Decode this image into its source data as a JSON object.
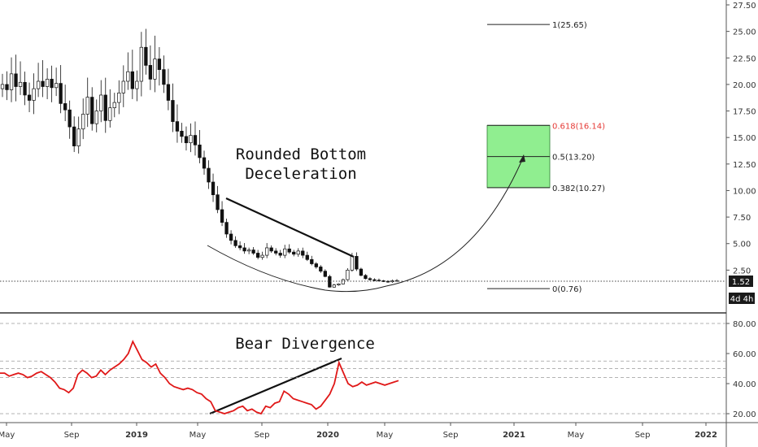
{
  "chart_data": [
    {
      "type": "candlestick",
      "title": "",
      "y_ticks": [
        "27.50",
        "25.00",
        "22.50",
        "20.00",
        "17.50",
        "15.00",
        "12.50",
        "10.00",
        "7.50",
        "5.00",
        "2.50"
      ],
      "ylim": [
        0,
        28.5
      ],
      "x_ticks": [
        "May",
        "Sep",
        "2019",
        "May",
        "Sep",
        "2020",
        "May",
        "Sep",
        "2021",
        "May",
        "Sep",
        "2022"
      ],
      "price_tag": {
        "value": 1.52,
        "label": "1.52",
        "countdown": "4d 4h"
      },
      "annotations": [
        "Rounded Bottom",
        "Deceleration"
      ],
      "fib_levels": [
        {
          "label": "1(25.65)",
          "value": 25.65,
          "color": "#222222"
        },
        {
          "label": "0.618(16.14)",
          "value": 16.14,
          "color": "#e53935"
        },
        {
          "label": "0.5(13.20)",
          "value": 13.2,
          "color": "#222222"
        },
        {
          "label": "0.382(10.27)",
          "value": 10.27,
          "color": "#222222"
        },
        {
          "label": "0(0.76)",
          "value": 0.76,
          "color": "#222222"
        }
      ],
      "target_zone": {
        "from": 10.27,
        "to": 16.14,
        "color": "#90ee90"
      },
      "closes": [
        20,
        19.5,
        21,
        19.8,
        20.2,
        19,
        18.5,
        19.6,
        20.3,
        19.8,
        20.5,
        19.7,
        20.1,
        18.2,
        17.6,
        16,
        14.2,
        15.8,
        17.2,
        18.8,
        16.3,
        17.5,
        19,
        16.6,
        17.8,
        18.3,
        19.2,
        20.3,
        21.2,
        19.6,
        20.3,
        23.5,
        21.8,
        20.5,
        22.4,
        21.4,
        20,
        18.5,
        16.5,
        15.6,
        15.1,
        14.5,
        15.2,
        14.3,
        13.1,
        12.1,
        10.8,
        9.6,
        8.2,
        7,
        5.9,
        5.3,
        4.8,
        4.6,
        4.3,
        4.4,
        4.1,
        3.7,
        3.9,
        4.6,
        4.3,
        4.1,
        3.9,
        4.5,
        4.2,
        4,
        4.3,
        3.9,
        3.5,
        3.1,
        2.8,
        2.4,
        1.9,
        0.9,
        1.1,
        1.2,
        1.6,
        2.5,
        3.8,
        2.6,
        2,
        1.7,
        1.6,
        1.55,
        1.5,
        1.45,
        1.4,
        1.5,
        1.52
      ]
    },
    {
      "type": "line",
      "title": "",
      "series": [
        {
          "values": [
            47,
            47,
            45,
            46,
            47,
            46,
            44,
            45,
            47,
            48,
            46,
            44,
            41,
            37,
            36,
            34,
            37,
            46,
            49,
            47,
            44,
            45,
            49,
            46,
            49,
            51,
            53,
            56,
            60,
            68,
            62,
            56,
            54,
            51,
            53,
            47,
            44,
            40,
            38,
            37,
            36,
            37,
            36,
            34,
            33,
            30,
            28,
            22,
            21,
            20,
            21,
            22,
            24,
            25,
            22,
            23,
            21,
            20,
            25,
            24,
            27,
            28,
            35,
            33,
            30,
            29,
            28,
            27,
            26,
            23,
            25,
            29,
            33,
            40,
            54,
            47,
            40,
            38,
            39,
            41,
            39,
            40,
            41,
            40,
            39,
            40,
            41,
            42
          ]
        }
      ],
      "y_ticks": [
        "80.00",
        "60.00",
        "40.00",
        "20.00"
      ],
      "ylim": [
        14,
        88
      ],
      "annotations": [
        "Bear Divergence"
      ]
    }
  ]
}
